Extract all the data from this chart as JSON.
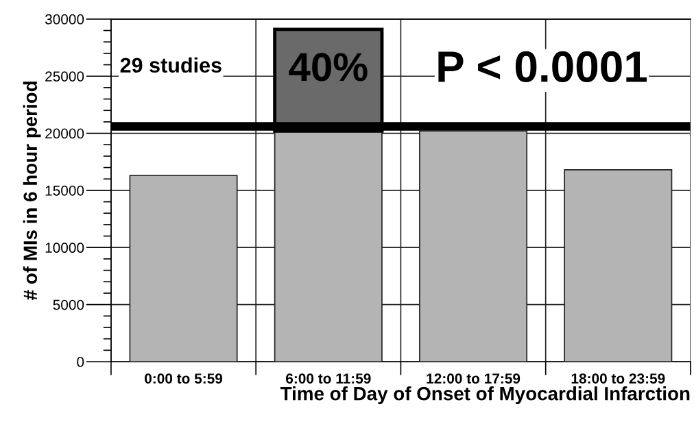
{
  "chart_data": {
    "type": "bar",
    "stacked": true,
    "xlabel": "Time of Day of Onset of Myocardial Infarction",
    "ylabel": "# of MIs in 6 hour period",
    "categories": [
      "0:00 to 5:59",
      "6:00 to 11:59",
      "12:00 to 17:59",
      "18:00 to 23:59"
    ],
    "series": [
      {
        "color": "#b4b4b4",
        "values": [
          16300,
          20200,
          20200,
          16800
        ]
      },
      {
        "color": "#6a6a6a",
        "values": [
          null,
          8900,
          null,
          null
        ]
      }
    ],
    "ylim": [
      0,
      30000
    ],
    "yticks": [
      0,
      5000,
      10000,
      15000,
      20000,
      25000,
      30000
    ],
    "grid": true,
    "ref_lines": [
      {
        "axis": "y",
        "value": 20600,
        "color": "#000000"
      }
    ],
    "annotations": [
      "29 studies",
      "40%",
      "P < 0.0001"
    ]
  }
}
